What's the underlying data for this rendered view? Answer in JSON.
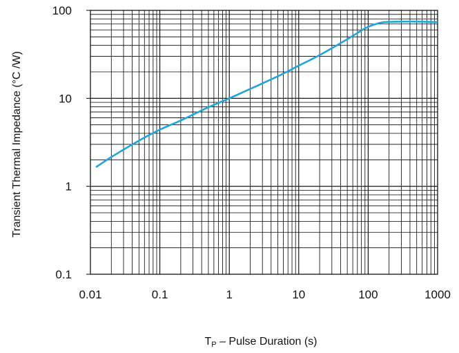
{
  "chart_data": {
    "type": "line",
    "x_scale": "log",
    "y_scale": "log",
    "xlim": [
      0.01,
      1000
    ],
    "ylim": [
      0.1,
      100
    ],
    "grid": true,
    "xlabel": "T",
    "xlabel_sub": "P",
    "xlabel_rest": " – Pulse Duration (s)",
    "ylabel": "Transient Thermal Impedance (°C /W)",
    "x_ticks": [
      "0.01",
      "0.1",
      "1",
      "10",
      "100",
      "1000"
    ],
    "y_ticks": [
      "0.1",
      "1",
      "10",
      "100"
    ],
    "series": [
      {
        "color": "#1fa4dc",
        "x": [
          0.012,
          0.02,
          0.05,
          0.1,
          0.2,
          0.5,
          1,
          2,
          5,
          10,
          20,
          50,
          80,
          100,
          130,
          160,
          200,
          300,
          500,
          800,
          1000
        ],
        "y": [
          1.65,
          2.15,
          3.3,
          4.4,
          5.6,
          7.9,
          10,
          12.8,
          17.8,
          23.5,
          31,
          47,
          59,
          65,
          70,
          73,
          74,
          74.5,
          74.5,
          74,
          73.5
        ]
      }
    ]
  }
}
